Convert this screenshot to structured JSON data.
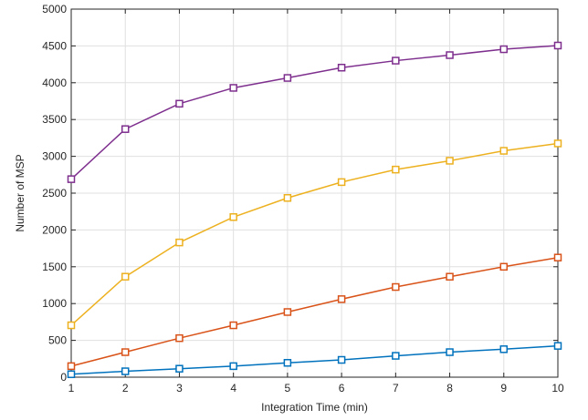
{
  "chart_data": {
    "type": "line",
    "title": "",
    "xlabel": "Integration Time (min)",
    "ylabel": "Number of MSP",
    "xlim": [
      1,
      10
    ],
    "ylim": [
      0,
      5000
    ],
    "x": [
      1,
      2,
      3,
      4,
      5,
      6,
      7,
      8,
      9,
      10
    ],
    "xticks": [
      "1",
      "2",
      "3",
      "4",
      "5",
      "6",
      "7",
      "8",
      "9",
      "10"
    ],
    "yticks": [
      "0",
      "500",
      "1000",
      "1500",
      "2000",
      "2500",
      "3000",
      "3500",
      "4000",
      "4500",
      "5000"
    ],
    "grid": true,
    "marker": "square",
    "series": [
      {
        "color": "#0072BD",
        "values": [
          40,
          80,
          115,
          150,
          195,
          235,
          290,
          340,
          380,
          425
        ]
      },
      {
        "color": "#D95319",
        "values": [
          150,
          340,
          530,
          705,
          885,
          1060,
          1225,
          1365,
          1500,
          1625
        ]
      },
      {
        "color": "#EDB120",
        "values": [
          705,
          1365,
          1830,
          2175,
          2435,
          2650,
          2820,
          2940,
          3075,
          3175
        ]
      },
      {
        "color": "#7E2F8E",
        "values": [
          2690,
          3370,
          3715,
          3930,
          4065,
          4205,
          4300,
          4375,
          4455,
          4505
        ]
      }
    ]
  }
}
